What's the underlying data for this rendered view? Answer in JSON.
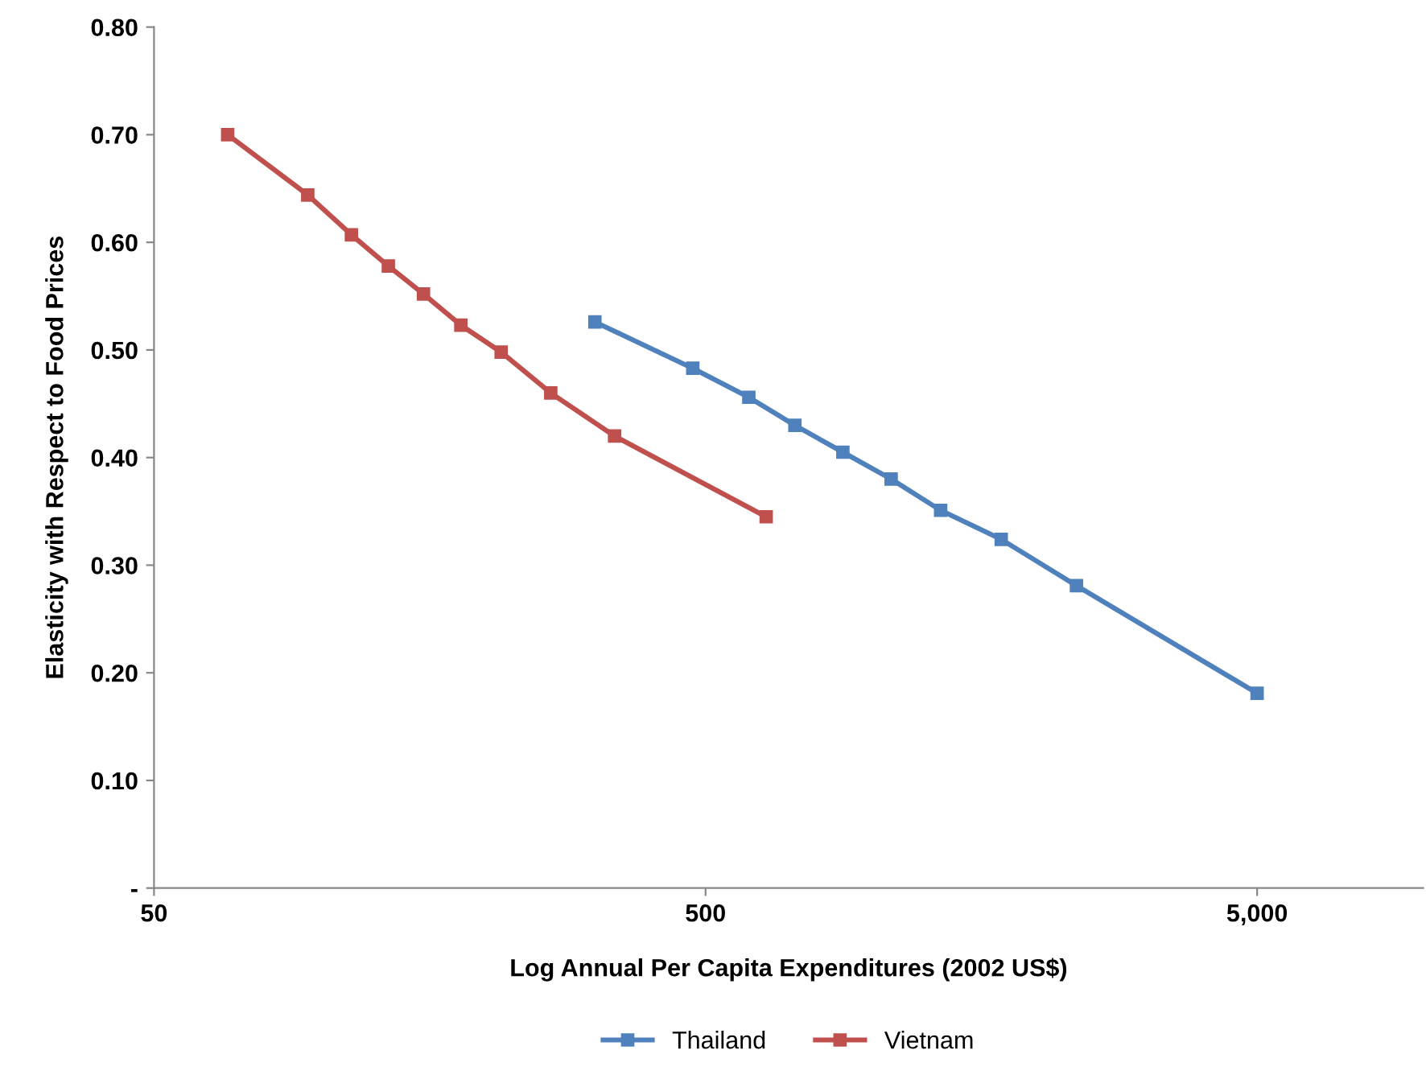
{
  "chart_data": {
    "type": "line",
    "xlabel": "Log Annual Per Capita Expenditures (2002 US$)",
    "ylabel": "Elasticity with Respect to Food Prices",
    "log": "x",
    "xlim": [
      50,
      10000
    ],
    "xticks": [
      50,
      500,
      {
        "value": 5000,
        "label": "5,000"
      }
    ],
    "ylim": [
      0,
      0.8
    ],
    "yticks": [
      {
        "value": 0,
        "label": "-"
      },
      {
        "value": 0.1,
        "label": "0.10"
      },
      {
        "value": 0.2,
        "label": "0.20"
      },
      {
        "value": 0.3,
        "label": "0.30"
      },
      {
        "value": 0.4,
        "label": "0.40"
      },
      {
        "value": 0.5,
        "label": "0.50"
      },
      {
        "value": 0.6,
        "label": "0.60"
      },
      {
        "value": 0.7,
        "label": "0.70"
      },
      {
        "value": 0.8,
        "label": "0.80"
      }
    ],
    "grid": false,
    "legend": "bottom",
    "marker": "square",
    "line_style": "solid",
    "series": [
      {
        "name": "Thailand",
        "color": "#4f81bd",
        "x": [
          315,
          474,
          599,
          726,
          887,
          1085,
          1334,
          1718,
          2352,
          5000
        ],
        "values": [
          0.526,
          0.483,
          0.456,
          0.43,
          0.405,
          0.38,
          0.351,
          0.324,
          0.281,
          0.181
        ]
      },
      {
        "name": "Vietnam",
        "color": "#c0504d",
        "x": [
          68,
          95,
          114,
          133,
          154,
          180,
          213,
          262,
          342,
          644
        ],
        "values": [
          0.7,
          0.644,
          0.607,
          0.578,
          0.552,
          0.523,
          0.498,
          0.46,
          0.42,
          0.345
        ]
      }
    ]
  }
}
